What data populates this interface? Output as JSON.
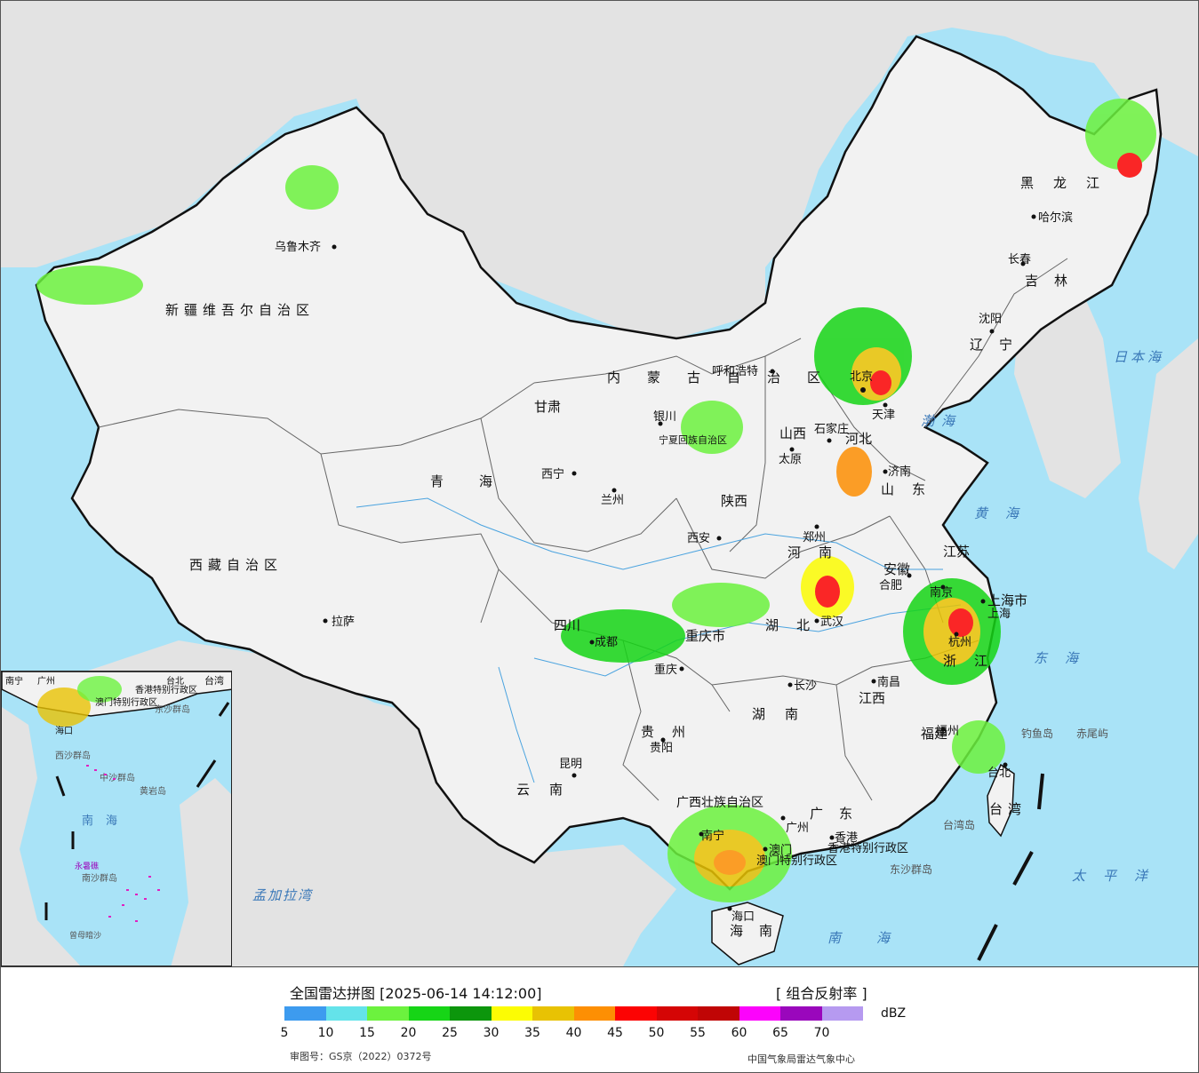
{
  "legend": {
    "title": "全国雷达拼图 [2025-06-14 14:12:00]",
    "product": "[ 组合反射率 ]",
    "unit": "dBZ",
    "ticks": [
      "5",
      "10",
      "15",
      "20",
      "25",
      "30",
      "35",
      "40",
      "45",
      "50",
      "55",
      "60",
      "65",
      "70"
    ],
    "colors": [
      "#3d9bef",
      "#64e3ea",
      "#6cf23e",
      "#16d516",
      "#0c960c",
      "#fcfc03",
      "#e8c203",
      "#fd8f03",
      "#fc0303",
      "#d50505",
      "#c00505",
      "#fc03fc",
      "#9a07bc",
      "#b69af0"
    ],
    "approval": "审图号：GS京（2022）0372号",
    "agency": "中国气象局雷达气象中心"
  },
  "map": {
    "colors": {
      "ocean": "#a9e3f7",
      "land": "#f2f2f2",
      "foreign": "#e3e3e3",
      "border": "#111111"
    },
    "provinces": [
      "新疆维吾尔自治区",
      "西藏自治区",
      "青海",
      "甘肃",
      "内蒙古自治区",
      "黑龙江",
      "吉林",
      "辽宁",
      "河北",
      "山西",
      "陕西",
      "宁夏回族自治区",
      "四川",
      "重庆市",
      "河南",
      "山东",
      "湖北",
      "安徽",
      "江苏",
      "上海市",
      "浙江",
      "湖南",
      "江西",
      "福建",
      "贵州",
      "云南",
      "广西壮族自治区",
      "广东",
      "海南",
      "台湾",
      "香港特别行政区",
      "澳门特别行政区"
    ],
    "cities": [
      "乌鲁木齐",
      "拉萨",
      "西宁",
      "兰州",
      "银川",
      "呼和浩特",
      "太原",
      "石家庄",
      "北京",
      "天津",
      "济南",
      "郑州",
      "西安",
      "成都",
      "重庆",
      "武汉",
      "合肥",
      "南京",
      "上海",
      "杭州",
      "南昌",
      "长沙",
      "贵阳",
      "昆明",
      "南宁",
      "广州",
      "香港",
      "澳门",
      "海口",
      "福州",
      "台北",
      "哈尔滨",
      "长春",
      "沈阳"
    ],
    "seas": [
      "日本海",
      "渤海",
      "黄海",
      "东海",
      "太平洋",
      "南海",
      "孟加拉湾"
    ],
    "islands": [
      "钓鱼岛",
      "赤尾屿",
      "台湾岛",
      "东沙群岛"
    ],
    "inset_labels": [
      "台湾",
      "香港特别行政区",
      "澳门特别行政区",
      "东沙群岛",
      "西沙群岛",
      "中沙群岛",
      "黄岩岛",
      "南海",
      "永暑礁",
      "南沙群岛",
      "曾母暗沙",
      "海口",
      "广州",
      "南宁",
      "台北"
    ]
  }
}
